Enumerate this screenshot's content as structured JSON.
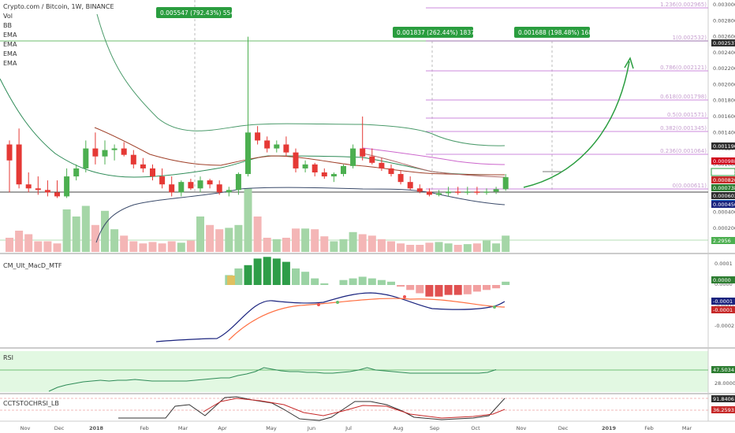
{
  "header": {
    "symbol_line": "Crypto.com / Bitcoin, 1W, BINANCE",
    "indicators": [
      "Vol",
      "BB",
      "EMA",
      "EMA",
      "EMA",
      "EMA"
    ]
  },
  "panes": {
    "macd": "CM_Ult_MacD_MTF",
    "rsi": "RSI",
    "stoch": "CCTSTOCHRSI_LB"
  },
  "x_axis_labels": [
    "Nov",
    "Dec",
    "2018",
    "Feb",
    "Mar",
    "Apr",
    "May",
    "Jun",
    "Jul",
    "Aug",
    "Sep",
    "Oct",
    "Nov",
    "Dec",
    "2019",
    "Feb",
    "Mar"
  ],
  "price_axis": [
    "0.003000",
    "0.002800",
    "0.002600",
    "0.002400",
    "0.002200",
    "0.002000",
    "0.001800",
    "0.001600",
    "0.001400",
    "0.001200",
    "0.001000",
    "0.000800",
    "0.000600",
    "0.000400",
    "0.000200"
  ],
  "price_tags": [
    {
      "text": "0.002537",
      "color": "#2e2e2e"
    },
    {
      "text": "0.001190",
      "color": "#2e2e2e"
    },
    {
      "text": "0.000988",
      "color": "#d0021b"
    },
    {
      "text": "0.000841",
      "color": "#ffffff",
      "text_color": "#2a9d3f",
      "border": "#2a9d3f"
    },
    {
      "text": "0.000820",
      "color": "#c62828"
    },
    {
      "text": "0.000738",
      "color": "#2e7d32"
    },
    {
      "text": "0.000603",
      "color": "#2e2e2e"
    },
    {
      "text": "0.000511",
      "color": "#1565c0"
    },
    {
      "text": "0.000450",
      "color": "#1a237e"
    },
    {
      "text": "2.2956",
      "color": "#4caf50"
    }
  ],
  "fib_levels": [
    {
      "label": "1.236(0.002965)"
    },
    {
      "label": "1(0.002532)"
    },
    {
      "label": "0.786(0.002121)"
    },
    {
      "label": "0.618(0.001798)"
    },
    {
      "label": "0.5(0.001571)"
    },
    {
      "label": "0.382(0.001345)"
    },
    {
      "label": "0.236(0.001064)"
    },
    {
      "label": "0(0.000611)"
    }
  ],
  "annotations": [
    {
      "text": "0.005547 (792.43%) 5547"
    },
    {
      "text": "0.001837 (262.44%) 1837"
    },
    {
      "text": "0.001688 (198.48%) 1688"
    }
  ],
  "macd_axis": [
    "0.0001",
    "0.0000",
    "-0.0001",
    "-0.0002"
  ],
  "macd_tags": [
    {
      "text": "0.0000",
      "color": "#2e7d32"
    },
    {
      "text": "-0.0001",
      "color": "#1a237e"
    },
    {
      "text": "-0.0001",
      "color": "#c62828"
    }
  ],
  "rsi_axis": [
    "47.5034",
    "28.0000"
  ],
  "rsi_tag": {
    "text": "47.5034",
    "color": "#2e7d32"
  },
  "stoch_axis": [
    "91.8406",
    "36.2593"
  ],
  "stoch_tags": [
    {
      "text": "91.8406",
      "color": "#2e2e2e"
    },
    {
      "text": "36.2593",
      "color": "#c62828"
    }
  ],
  "colors": {
    "up": "#4caf50",
    "down": "#e53935",
    "fib": "#cc88dd",
    "rsi_fill": "#c8f0c8"
  },
  "chart_data": {
    "type": "candlestick",
    "title": "Crypto.com / Bitcoin, 1W, BINANCE",
    "ylim": [
      0.0002,
      0.003
    ],
    "candles": [
      {
        "o": 0.00105,
        "h": 0.0013,
        "l": 0.00065,
        "c": 0.00125,
        "up": false
      },
      {
        "o": 0.00125,
        "h": 0.00145,
        "l": 0.0007,
        "c": 0.00075,
        "up": false
      },
      {
        "o": 0.00075,
        "h": 0.0009,
        "l": 0.00065,
        "c": 0.0007,
        "up": false
      },
      {
        "o": 0.0007,
        "h": 0.00085,
        "l": 0.00062,
        "c": 0.00068,
        "up": false
      },
      {
        "o": 0.00068,
        "h": 0.0008,
        "l": 0.0006,
        "c": 0.00065,
        "up": false
      },
      {
        "o": 0.00065,
        "h": 0.0008,
        "l": 0.00058,
        "c": 0.0006,
        "up": false
      },
      {
        "o": 0.0006,
        "h": 0.00095,
        "l": 0.00058,
        "c": 0.00085,
        "up": true
      },
      {
        "o": 0.00085,
        "h": 0.001,
        "l": 0.0008,
        "c": 0.00095,
        "up": true
      },
      {
        "o": 0.00095,
        "h": 0.0013,
        "l": 0.0009,
        "c": 0.0012,
        "up": true
      },
      {
        "o": 0.0012,
        "h": 0.0014,
        "l": 0.001,
        "c": 0.0011,
        "up": false
      },
      {
        "o": 0.0011,
        "h": 0.0013,
        "l": 0.001,
        "c": 0.00118,
        "up": true
      },
      {
        "o": 0.00118,
        "h": 0.00125,
        "l": 0.00105,
        "c": 0.0012,
        "up": true
      },
      {
        "o": 0.0012,
        "h": 0.00128,
        "l": 0.0011,
        "c": 0.00112,
        "up": false
      },
      {
        "o": 0.00112,
        "h": 0.00118,
        "l": 0.00095,
        "c": 0.001,
        "up": false
      },
      {
        "o": 0.001,
        "h": 0.00108,
        "l": 0.0009,
        "c": 0.00095,
        "up": false
      },
      {
        "o": 0.00095,
        "h": 0.001,
        "l": 0.0008,
        "c": 0.00085,
        "up": false
      },
      {
        "o": 0.00085,
        "h": 0.00095,
        "l": 0.0007,
        "c": 0.00075,
        "up": false
      },
      {
        "o": 0.00075,
        "h": 0.00085,
        "l": 0.0006,
        "c": 0.00065,
        "up": false
      },
      {
        "o": 0.00065,
        "h": 0.0008,
        "l": 0.0006,
        "c": 0.00078,
        "up": true
      },
      {
        "o": 0.00078,
        "h": 0.00082,
        "l": 0.00068,
        "c": 0.0007,
        "up": false
      },
      {
        "o": 0.0007,
        "h": 0.00085,
        "l": 0.00065,
        "c": 0.0008,
        "up": true
      },
      {
        "o": 0.0008,
        "h": 0.00082,
        "l": 0.0007,
        "c": 0.00075,
        "up": false
      },
      {
        "o": 0.00075,
        "h": 0.0008,
        "l": 0.00062,
        "c": 0.00065,
        "up": false
      },
      {
        "o": 0.00065,
        "h": 0.00072,
        "l": 0.0006,
        "c": 0.00068,
        "up": true
      },
      {
        "o": 0.00068,
        "h": 0.0009,
        "l": 0.00062,
        "c": 0.00088,
        "up": true
      },
      {
        "o": 0.00088,
        "h": 0.0026,
        "l": 0.00085,
        "c": 0.0014,
        "up": true
      },
      {
        "o": 0.0014,
        "h": 0.00148,
        "l": 0.00125,
        "c": 0.0013,
        "up": false
      },
      {
        "o": 0.0013,
        "h": 0.00135,
        "l": 0.00115,
        "c": 0.0012,
        "up": false
      },
      {
        "o": 0.0012,
        "h": 0.0013,
        "l": 0.00115,
        "c": 0.00125,
        "up": true
      },
      {
        "o": 0.00125,
        "h": 0.00135,
        "l": 0.0011,
        "c": 0.00115,
        "up": false
      },
      {
        "o": 0.00115,
        "h": 0.0012,
        "l": 0.0009,
        "c": 0.00095,
        "up": false
      },
      {
        "o": 0.00095,
        "h": 0.00105,
        "l": 0.0009,
        "c": 0.001,
        "up": true
      },
      {
        "o": 0.001,
        "h": 0.00102,
        "l": 0.00085,
        "c": 0.0009,
        "up": false
      },
      {
        "o": 0.0009,
        "h": 0.00095,
        "l": 0.00082,
        "c": 0.00085,
        "up": false
      },
      {
        "o": 0.00085,
        "h": 0.0009,
        "l": 0.00078,
        "c": 0.00088,
        "up": true
      },
      {
        "o": 0.00088,
        "h": 0.001,
        "l": 0.00085,
        "c": 0.00098,
        "up": true
      },
      {
        "o": 0.00098,
        "h": 0.00125,
        "l": 0.00095,
        "c": 0.0012,
        "up": true
      },
      {
        "o": 0.0012,
        "h": 0.0016,
        "l": 0.00105,
        "c": 0.0011,
        "up": false
      },
      {
        "o": 0.0011,
        "h": 0.0012,
        "l": 0.001,
        "c": 0.00102,
        "up": false
      },
      {
        "o": 0.00102,
        "h": 0.00108,
        "l": 0.00092,
        "c": 0.00095,
        "up": false
      },
      {
        "o": 0.00095,
        "h": 0.001,
        "l": 0.00085,
        "c": 0.00088,
        "up": false
      },
      {
        "o": 0.00088,
        "h": 0.00092,
        "l": 0.00075,
        "c": 0.00078,
        "up": false
      },
      {
        "o": 0.00078,
        "h": 0.00085,
        "l": 0.00068,
        "c": 0.0007,
        "up": false
      },
      {
        "o": 0.0007,
        "h": 0.00075,
        "l": 0.00064,
        "c": 0.00066,
        "up": false
      },
      {
        "o": 0.00066,
        "h": 0.0007,
        "l": 0.0006,
        "c": 0.00062,
        "up": false
      },
      {
        "o": 0.00062,
        "h": 0.00068,
        "l": 0.0006,
        "c": 0.00064,
        "up": true
      },
      {
        "o": 0.00064,
        "h": 0.00072,
        "l": 0.0006,
        "c": 0.00066,
        "up": true
      },
      {
        "o": 0.00066,
        "h": 0.00072,
        "l": 0.00062,
        "c": 0.00065,
        "up": false
      },
      {
        "o": 0.00065,
        "h": 0.00072,
        "l": 0.00062,
        "c": 0.00066,
        "up": true
      },
      {
        "o": 0.00066,
        "h": 0.00072,
        "l": 0.00062,
        "c": 0.00065,
        "up": false
      },
      {
        "o": 0.00065,
        "h": 0.0007,
        "l": 0.00062,
        "c": 0.00066,
        "up": true
      },
      {
        "o": 0.00066,
        "h": 0.00072,
        "l": 0.00063,
        "c": 0.00069,
        "up": true
      },
      {
        "o": 0.00069,
        "h": 0.00088,
        "l": 0.00067,
        "c": 0.00084,
        "up": true
      }
    ],
    "volume": [
      2,
      3,
      2.5,
      1.5,
      1.5,
      1.2,
      6,
      5,
      6.5,
      3.8,
      5.8,
      3.2,
      2.3,
      1.5,
      1.2,
      1.4,
      1.2,
      1.5,
      1.3,
      1.6,
      5,
      3.8,
      3.2,
      3.4,
      3.8,
      9,
      5,
      2,
      1.8,
      2,
      3.3,
      3.3,
      3.2,
      2.2,
      1.5,
      1.8,
      2.8,
      2.5,
      2.3,
      1.8,
      1.5,
      1.2,
      1,
      1,
      1.3,
      1.4,
      1.2,
      1,
      1.1,
      1.2,
      1.6,
      1.2,
      2.3
    ],
    "macd_hist": [
      0,
      0,
      0,
      0,
      0,
      0,
      0,
      0,
      0,
      0,
      0,
      0,
      0,
      0,
      0,
      0,
      0,
      0,
      0,
      0,
      0,
      0,
      0,
      0.3,
      0.5,
      0.6,
      0.8,
      0.85,
      0.8,
      0.7,
      0.5,
      0.4,
      0.2,
      0.05,
      0,
      0.15,
      0.2,
      0.25,
      0.2,
      0.15,
      0.1,
      -0.05,
      -0.15,
      -0.25,
      -0.35,
      -0.35,
      -0.3,
      -0.3,
      -0.28,
      -0.2,
      -0.15,
      -0.1,
      0.1
    ],
    "rsi": [
      20,
      25,
      28,
      30,
      32,
      33,
      34,
      33,
      34,
      34,
      35,
      34,
      33,
      33,
      33,
      33,
      33,
      34,
      35,
      36,
      37,
      37,
      40,
      42,
      45,
      50,
      48,
      46,
      45,
      45,
      44,
      44,
      43,
      43,
      44,
      45,
      47,
      50,
      47,
      46,
      45,
      44,
      43,
      43,
      43,
      43,
      43,
      43,
      43,
      43,
      43,
      44,
      47.5
    ]
  }
}
